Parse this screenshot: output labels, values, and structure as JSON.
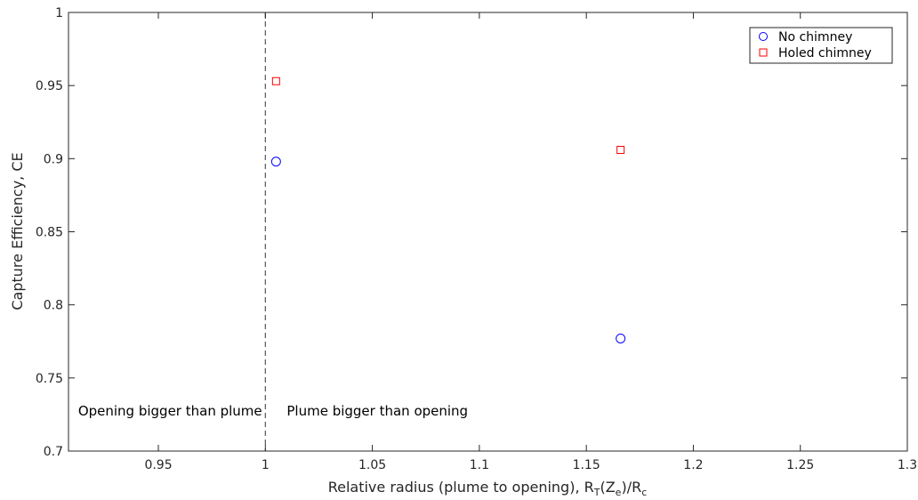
{
  "chart_data": {
    "type": "scatter",
    "title": "",
    "xlabel": {
      "main": "Relative radius (plume to opening), R",
      "sub1": "T",
      "mid": "(Z",
      "sub2": "e",
      "after": ")/R",
      "sub3": "c"
    },
    "ylabel": "Capture Efficiency, CE",
    "xlim": [
      0.908,
      1.3
    ],
    "ylim": [
      0.7,
      1.0
    ],
    "x_ticks": [
      0.95,
      1.0,
      1.05,
      1.1,
      1.15,
      1.2,
      1.25,
      1.3
    ],
    "x_tick_labels": [
      "0.95",
      "1",
      "1.05",
      "1.1",
      "1.15",
      "1.2",
      "1.25",
      "1.3"
    ],
    "y_ticks": [
      0.7,
      0.75,
      0.8,
      0.85,
      0.9,
      0.95,
      1.0
    ],
    "y_tick_labels": [
      "0.7",
      "0.75",
      "0.8",
      "0.85",
      "0.9",
      "0.95",
      "1"
    ],
    "grid": false,
    "legend_position": "top-right",
    "series": [
      {
        "name": "No chimney",
        "marker": "circle",
        "color": "#0000ff",
        "x": [
          1.005,
          1.166
        ],
        "y": [
          0.898,
          0.777
        ]
      },
      {
        "name": "Holed chimney",
        "marker": "square",
        "color": "#ff0000",
        "x": [
          1.005,
          1.166
        ],
        "y": [
          0.953,
          0.906
        ]
      }
    ],
    "reference_line": {
      "x": 1.0,
      "style": "dashed",
      "color": "#555555"
    },
    "annotations": [
      {
        "text": "Opening bigger than plume",
        "x": 0.9125,
        "y": 0.7275,
        "anchor": "start"
      },
      {
        "text": "Plume bigger than opening",
        "x": 1.01,
        "y": 0.7275,
        "anchor": "start"
      }
    ]
  }
}
